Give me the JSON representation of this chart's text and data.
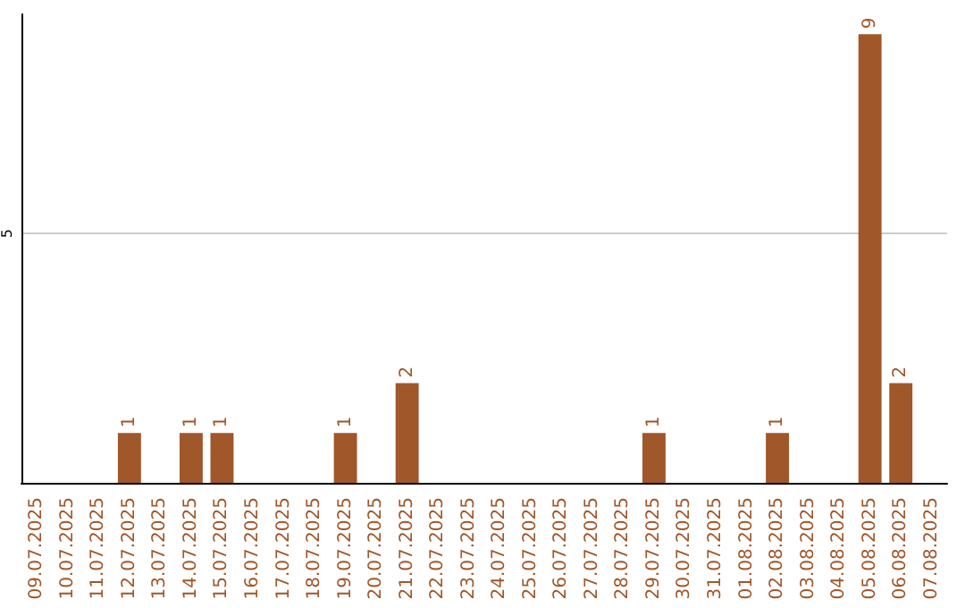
{
  "chart_data": {
    "type": "bar",
    "categories": [
      "09.07.2025",
      "10.07.2025",
      "11.07.2025",
      "12.07.2025",
      "13.07.2025",
      "14.07.2025",
      "15.07.2025",
      "16.07.2025",
      "17.07.2025",
      "18.07.2025",
      "19.07.2025",
      "20.07.2025",
      "21.07.2025",
      "22.07.2025",
      "23.07.2025",
      "24.07.2025",
      "25.07.2025",
      "26.07.2025",
      "27.07.2025",
      "28.07.2025",
      "29.07.2025",
      "30.07.2025",
      "31.07.2025",
      "01.08.2025",
      "02.08.2025",
      "03.08.2025",
      "04.08.2025",
      "05.08.2025",
      "06.08.2025",
      "07.08.2025"
    ],
    "values": [
      0,
      0,
      0,
      1,
      0,
      1,
      1,
      0,
      0,
      0,
      1,
      0,
      2,
      0,
      0,
      0,
      0,
      0,
      0,
      0,
      1,
      0,
      0,
      0,
      1,
      0,
      0,
      9,
      2,
      0
    ],
    "value_labels": [
      null,
      null,
      null,
      "1",
      null,
      "1",
      "1",
      null,
      null,
      null,
      "1",
      null,
      "2",
      null,
      null,
      null,
      null,
      null,
      null,
      null,
      "1",
      null,
      null,
      null,
      "1",
      null,
      null,
      "9",
      "2",
      null
    ],
    "color": "#a0572a",
    "ylim": [
      0,
      9.4
    ],
    "yticks": [
      5
    ],
    "grid": "y"
  }
}
